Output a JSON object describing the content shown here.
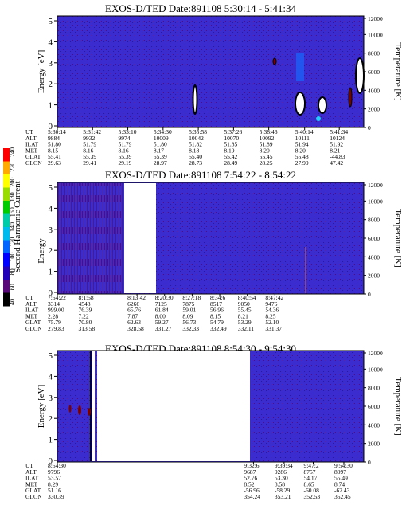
{
  "panels": [
    {
      "title": "EXOS-D/TED   Date:891108   5:30:14 - 5:41:34",
      "ylabel_left": "Energy [eV]",
      "ylabel_right": "Temperature [K]",
      "y_ticks": [
        "0",
        "1",
        "2",
        "3",
        "4",
        "5"
      ],
      "t_ticks": [
        "0",
        "2000",
        "4000",
        "6000",
        "8000",
        "10000",
        "12000"
      ],
      "ephem_labels": [
        "UT",
        "ALT",
        "ILAT",
        "MLT",
        "GLAT",
        "GLON"
      ],
      "ephem_columns": [
        [
          "5:30:14",
          "9884",
          "51.80",
          "8.15",
          "55.41",
          "29.63"
        ],
        [
          "5:31:42",
          "9932",
          "51.79",
          "8.16",
          "55.39",
          "29.41"
        ],
        [
          "5:33:10",
          "9974",
          "51.79",
          "8.16",
          "55.39",
          "29.19"
        ],
        [
          "5:34:30",
          "10009",
          "51.80",
          "8.17",
          "55.39",
          "28.97"
        ],
        [
          "5:35:58",
          "10042",
          "51.82",
          "8.18",
          "55.40",
          "28.73"
        ],
        [
          "5:37:26",
          "10070",
          "51.85",
          "8.19",
          "55.42",
          "28.49"
        ],
        [
          "5:38:46",
          "10092",
          "51.89",
          "8.20",
          "55.45",
          "28.25"
        ],
        [
          "5:40:14",
          "10111",
          "51.94",
          "8.20",
          "55.48",
          "27.99"
        ],
        [
          "5:41:34",
          "10124",
          "51.92",
          "8.21",
          "-44.83",
          "47.42"
        ]
      ]
    },
    {
      "title": "EXOS-D/TED   Date:891108   7:54:22 - 8:54:22",
      "ylabel_left": "Energy",
      "ylabel_right": "Temperature [K]",
      "y_ticks": [
        "0",
        "1",
        "2",
        "3",
        "4",
        "5"
      ],
      "t_ticks": [
        "0",
        "2000",
        "4000",
        "6000",
        "8000",
        "10000",
        "12000"
      ],
      "ephem_labels": [
        "UT",
        "ALT",
        "ILAT",
        "MLT",
        "GLAT",
        "GLON"
      ],
      "ephem_columns": [
        [
          "7:54:22",
          "3314",
          "999.00",
          "2.28",
          "75.79",
          "279.83"
        ],
        [
          "8:1:58",
          "4548",
          "76.39",
          "7.22",
          "70.80",
          "313.58"
        ],
        [
          "8:13:42",
          "6266",
          "65.76",
          "7.87",
          "62.63",
          "328.58"
        ],
        [
          "8:20:30",
          "7125",
          "61.84",
          "8.00",
          "59.27",
          "331.27"
        ],
        [
          "8:27:18",
          "7875",
          "59.01",
          "8.09",
          "56.73",
          "332.33"
        ],
        [
          "8:34:6",
          "8517",
          "56.96",
          "8.15",
          "54.79",
          "332.49"
        ],
        [
          "8:40:54",
          "9050",
          "55.45",
          "8.21",
          "53.29",
          "332.11"
        ],
        [
          "8:47:42",
          "9476",
          "54.36",
          "8.25",
          "52.10",
          "331.37"
        ]
      ]
    },
    {
      "title": "EXOS-D/TED   Date:891108   8:54:30 - 9:54:30",
      "ylabel_left": "Energy [eV]",
      "ylabel_right": "Temperature [K]",
      "y_ticks": [
        "0",
        "1",
        "2",
        "3",
        "4",
        "5"
      ],
      "t_ticks": [
        "0",
        "2000",
        "4000",
        "6000",
        "8000",
        "10000",
        "12000"
      ],
      "ephem_labels": [
        "UT",
        "ALT",
        "ILAT",
        "MLT",
        "GLAT",
        "GLON"
      ],
      "ephem_columns": [
        [
          "8:54:30",
          "9796",
          "53.57",
          "8.29",
          "51.16",
          "330.39"
        ],
        [
          "9:32:6",
          "9687",
          "52.76",
          "8.52",
          "-56.96",
          "354.24"
        ],
        [
          "9:39:34",
          "9286",
          "53.30",
          "8.58",
          "-58.29",
          "353.21"
        ],
        [
          "9:47:2",
          "8757",
          "54.17",
          "8.65",
          "-60.08",
          "352.53"
        ],
        [
          "9:54:30",
          "8097",
          "55.49",
          "8.74",
          "-62.43",
          "352.45"
        ]
      ]
    }
  ],
  "colorbar": {
    "label": "Second Harmonic Current",
    "ticks": [
      "40",
      "60",
      "80",
      "100",
      "120",
      "140",
      "160",
      "180",
      "200",
      "220",
      "240"
    ],
    "colors": [
      "#000000",
      "#5a0a78",
      "#2200b8",
      "#0000ff",
      "#0066ff",
      "#00bbee",
      "#00ccaa",
      "#00cc00",
      "#99dd00",
      "#ffff00",
      "#ffaa00",
      "#ff0000"
    ]
  },
  "chart_data": [
    {
      "type": "heatmap",
      "title": "EXOS-D/TED   Date:891108   5:30:14 - 5:41:34",
      "ylabel": "Energy [eV]",
      "ylabel_right": "Temperature [K]",
      "ylim": [
        0,
        5
      ],
      "ylim_right": [
        0,
        12000
      ],
      "x_ticks": [
        "5:30:14",
        "5:31:42",
        "5:33:10",
        "5:34:30",
        "5:35:58",
        "5:37:26",
        "5:38:46",
        "5:40:14",
        "5:41:34"
      ],
      "background_color": "#3a2ccf",
      "features": [
        {
          "kind": "contour",
          "x_time": "5:34:30",
          "energy_range": [
            1.2,
            2.0
          ]
        },
        {
          "kind": "contour",
          "x_time": "5:38:46",
          "energy_range": [
            0.5,
            1.5
          ]
        },
        {
          "kind": "contour",
          "x_time": "5:40:14",
          "energy_range": [
            0.7,
            1.3
          ]
        },
        {
          "kind": "contour",
          "x_time": "5:41:34",
          "energy_range": [
            1.0,
            2.8
          ]
        },
        {
          "kind": "blue_patch",
          "x_time": "5:38:46",
          "energy_range": [
            2.0,
            3.0
          ]
        }
      ]
    },
    {
      "type": "heatmap",
      "title": "EXOS-D/TED   Date:891108   7:54:22 - 8:54:22",
      "ylabel": "Energy",
      "ylabel_right": "Temperature [K]",
      "ylim": [
        0,
        5
      ],
      "ylim_right": [
        0,
        12000
      ],
      "x_ticks": [
        "7:54:22",
        "8:1:58",
        "8:13:42",
        "8:20:30",
        "8:27:18",
        "8:34:6",
        "8:40:54",
        "8:47:42"
      ],
      "background_color": "#3a2ccf",
      "features": [
        {
          "kind": "data_gap",
          "x_range": [
            "8:1:58",
            "8:13:42"
          ]
        },
        {
          "kind": "dark_streaks",
          "x_range": [
            "7:54:22",
            "8:1:58"
          ]
        }
      ]
    },
    {
      "type": "heatmap",
      "title": "EXOS-D/TED   Date:891108   8:54:30 - 9:54:30",
      "ylabel": "Energy [eV]",
      "ylabel_right": "Temperature [K]",
      "ylim": [
        0,
        5
      ],
      "ylim_right": [
        0,
        12000
      ],
      "x_ticks": [
        "8:54:30",
        "9:32:6",
        "9:39:34",
        "9:47:2",
        "9:54:30"
      ],
      "background_color": "#3a2ccf",
      "features": [
        {
          "kind": "data_gap",
          "x_range": [
            "8:54:30",
            "9:32:6"
          ]
        },
        {
          "kind": "contour",
          "x_time": "8:54:30",
          "energy_range": [
            2.0,
            2.6
          ]
        }
      ]
    }
  ]
}
